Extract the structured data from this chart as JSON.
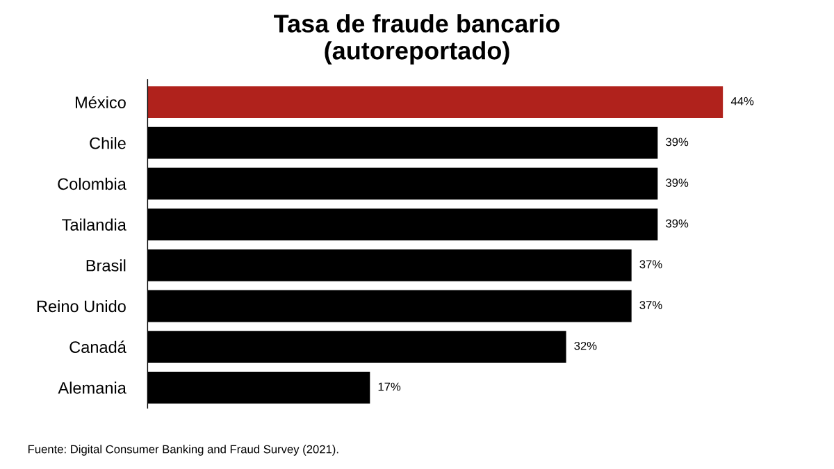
{
  "chart_data": {
    "type": "bar",
    "orientation": "horizontal",
    "title": "Tasa de fraude bancario\n(autoreportado)",
    "categories": [
      "México",
      "Chile",
      "Colombia",
      "Tailandia",
      "Brasil",
      "Reino Unido",
      "Canadá",
      "Alemania"
    ],
    "values": [
      44,
      39,
      39,
      39,
      37,
      37,
      32,
      17
    ],
    "colors": [
      "#b0221c",
      "#000000",
      "#000000",
      "#000000",
      "#000000",
      "#000000",
      "#000000",
      "#000000"
    ],
    "value_labels": [
      "44%",
      "39%",
      "39%",
      "39%",
      "37%",
      "37%",
      "32%",
      "17%"
    ],
    "annotations": [
      "Fuente: Digital Consumer Banking and Fraud Survey (2021)."
    ],
    "grid": false,
    "legend": false
  }
}
